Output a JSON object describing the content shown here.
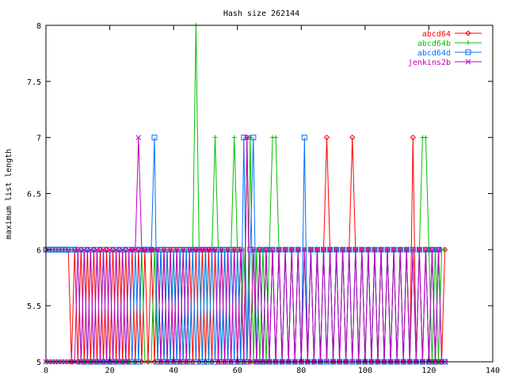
{
  "chart_data": {
    "type": "line",
    "title": "Hash size 262144",
    "xlabel": "",
    "ylabel": "maximum list length",
    "xlim": [
      0,
      140
    ],
    "ylim": [
      5,
      8
    ],
    "xticks": [
      0,
      20,
      40,
      60,
      80,
      100,
      120,
      140
    ],
    "yticks": [
      5,
      5.5,
      6,
      6.5,
      7,
      7.5,
      8
    ],
    "ytick_labels": [
      "5",
      "5.5",
      "6",
      "6.5",
      "7",
      "7.5",
      "8"
    ],
    "grid": false,
    "legend_position": "top-right",
    "series": [
      {
        "name": "abcd64",
        "color": "#ff0000",
        "marker": "diamond",
        "peaks": [
          [
            62,
            7
          ],
          [
            88,
            7
          ],
          [
            96,
            7
          ],
          [
            114,
            7
          ]
        ],
        "values": [
          6,
          6,
          6,
          6,
          6,
          6,
          6,
          6,
          5,
          6,
          5,
          6,
          5,
          6,
          5,
          6,
          5,
          6,
          5,
          6,
          5,
          6,
          5,
          6,
          5,
          6,
          5,
          6,
          5,
          6,
          5,
          6,
          5,
          6,
          5,
          6,
          5,
          6,
          5,
          6,
          5,
          6,
          5,
          6,
          5,
          6,
          5,
          6,
          5,
          6,
          5,
          6,
          5,
          6,
          5,
          6,
          5,
          6,
          5,
          6,
          5,
          6,
          5,
          7,
          5,
          6,
          5,
          6,
          5,
          6,
          5,
          6,
          5,
          6,
          5,
          6,
          5,
          6,
          5,
          6,
          5,
          6,
          5,
          6,
          5,
          6,
          5,
          6,
          7,
          6,
          5,
          6,
          5,
          6,
          5,
          6,
          7,
          6,
          5,
          6,
          5,
          6,
          5,
          6,
          5,
          6,
          5,
          6,
          5,
          6,
          5,
          6,
          5,
          6,
          5,
          7,
          5,
          6,
          5,
          6,
          5,
          6,
          5,
          6,
          5,
          6
        ]
      },
      {
        "name": "abcd64b",
        "color": "#00c000",
        "marker": "plus",
        "peaks": [
          [
            46,
            8
          ],
          [
            52,
            7
          ],
          [
            58,
            7
          ],
          [
            63,
            7
          ],
          [
            70,
            7
          ],
          [
            71,
            7
          ],
          [
            117,
            7
          ],
          [
            118,
            7
          ]
        ],
        "values": [
          5,
          5,
          5,
          5,
          5,
          5,
          5,
          5,
          5,
          5,
          5,
          5,
          5,
          5,
          5,
          5,
          5,
          5,
          5,
          5,
          5,
          5,
          5,
          5,
          5,
          5,
          5,
          5,
          5,
          5,
          6,
          5,
          5,
          5,
          6,
          5,
          6,
          5,
          6,
          5,
          6,
          5,
          6,
          5,
          6,
          5,
          6,
          8,
          6,
          5,
          6,
          5,
          6,
          7,
          6,
          5,
          6,
          5,
          6,
          7,
          6,
          5,
          6,
          5,
          7,
          5,
          6,
          5,
          6,
          5,
          6,
          7,
          7,
          6,
          5,
          6,
          5,
          6,
          5,
          6,
          5,
          6,
          5,
          6,
          5,
          6,
          5,
          6,
          5,
          6,
          5,
          6,
          5,
          6,
          5,
          6,
          5,
          6,
          5,
          6,
          5,
          6,
          5,
          6,
          5,
          6,
          5,
          6,
          5,
          6,
          5,
          6,
          5,
          6,
          5,
          6,
          5,
          6,
          7,
          7,
          6,
          5,
          6,
          5,
          6,
          6
        ]
      },
      {
        "name": "abcd64d",
        "color": "#0070ff",
        "marker": "square",
        "peaks": [
          [
            34,
            7
          ],
          [
            62,
            7
          ],
          [
            65,
            7
          ],
          [
            81,
            7
          ]
        ],
        "values": [
          6,
          6,
          6,
          6,
          6,
          6,
          6,
          6,
          6,
          6,
          6,
          5,
          6,
          5,
          6,
          5,
          6,
          5,
          6,
          5,
          6,
          5,
          6,
          5,
          6,
          5,
          6,
          5,
          6,
          5,
          6,
          6,
          6,
          6,
          7,
          5,
          6,
          5,
          6,
          5,
          6,
          5,
          6,
          5,
          6,
          5,
          6,
          5,
          6,
          5,
          6,
          5,
          6,
          5,
          6,
          5,
          6,
          5,
          6,
          5,
          6,
          5,
          7,
          5,
          6,
          7,
          5,
          6,
          5,
          6,
          5,
          6,
          5,
          6,
          5,
          6,
          5,
          6,
          5,
          6,
          5,
          7,
          5,
          6,
          5,
          6,
          5,
          6,
          5,
          6,
          5,
          6,
          5,
          6,
          5,
          6,
          5,
          6,
          5,
          6,
          5,
          6,
          5,
          6,
          5,
          6,
          5,
          6,
          5,
          6,
          5,
          6,
          5,
          6,
          5,
          6,
          5,
          6,
          5,
          6,
          5,
          6,
          5,
          6,
          5,
          5
        ]
      },
      {
        "name": "jenkins2b",
        "color": "#c000c0",
        "marker": "cross",
        "peaks": [
          [
            29,
            7
          ],
          [
            63,
            7
          ]
        ],
        "values": [
          5,
          5,
          5,
          5,
          5,
          5,
          5,
          5,
          5,
          5,
          6,
          5,
          6,
          5,
          6,
          5,
          6,
          5,
          6,
          5,
          6,
          5,
          6,
          5,
          6,
          5,
          6,
          6,
          6,
          7,
          6,
          6,
          6,
          6,
          6,
          6,
          5,
          6,
          5,
          6,
          5,
          6,
          5,
          6,
          5,
          6,
          6,
          6,
          6,
          6,
          6,
          6,
          6,
          6,
          5,
          6,
          5,
          6,
          5,
          6,
          5,
          6,
          5,
          7,
          5,
          6,
          5,
          6,
          5,
          6,
          5,
          6,
          5,
          6,
          5,
          6,
          5,
          6,
          5,
          6,
          5,
          6,
          5,
          6,
          5,
          6,
          5,
          6,
          5,
          6,
          5,
          6,
          5,
          6,
          5,
          6,
          5,
          6,
          5,
          6,
          5,
          6,
          5,
          6,
          5,
          6,
          5,
          6,
          5,
          6,
          5,
          6,
          5,
          6,
          5,
          6,
          5,
          6,
          5,
          6,
          5,
          6,
          5,
          6,
          5,
          5
        ]
      }
    ]
  }
}
